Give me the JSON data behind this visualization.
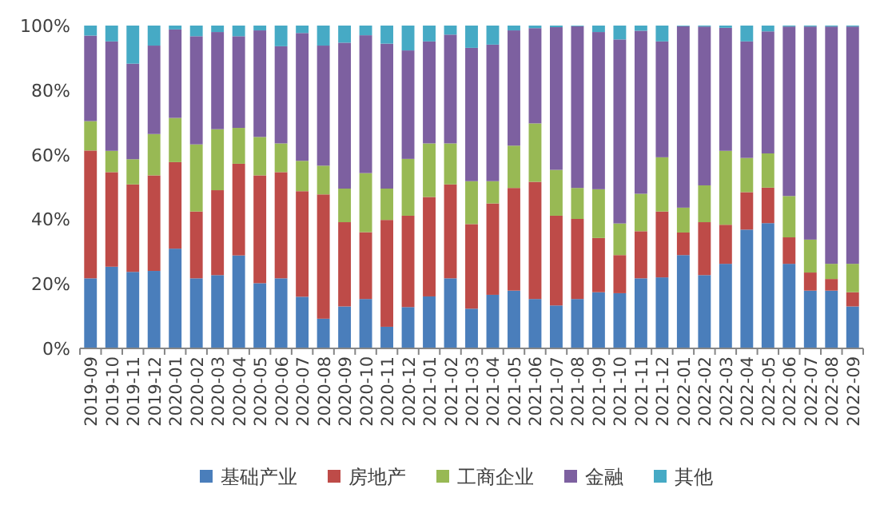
{
  "chart_data": {
    "type": "bar",
    "stacked": true,
    "categories": [
      "2019-09",
      "2019-10",
      "2019-11",
      "2019-12",
      "2020-01",
      "2020-02",
      "2020-03",
      "2020-04",
      "2020-05",
      "2020-06",
      "2020-07",
      "2020-08",
      "2020-09",
      "2020-10",
      "2020-11",
      "2020-12",
      "2021-01",
      "2021-02",
      "2021-03",
      "2021-04",
      "2021-05",
      "2021-06",
      "2021-07",
      "2021-08",
      "2021-09",
      "2021-10",
      "2021-11",
      "2021-12",
      "2022-01",
      "2022-02",
      "2022-03",
      "2022-04",
      "2022-05",
      "2022-06",
      "2022-07",
      "2022-08",
      "2022-09"
    ],
    "series": [
      {
        "name": "基础产业",
        "color": "#4a7ebb",
        "values": [
          21.7,
          25.3,
          23.7,
          24.0,
          30.9,
          21.7,
          22.7,
          28.8,
          20.2,
          21.7,
          16.0,
          9.2,
          13.0,
          15.3,
          6.7,
          12.8,
          16.1,
          21.7,
          12.3,
          16.6,
          17.9,
          15.3,
          13.3,
          15.3,
          17.4,
          17.1,
          21.7,
          22.0,
          28.9,
          22.7,
          26.2,
          36.8,
          38.8,
          26.2,
          17.9,
          17.9,
          13.0
        ]
      },
      {
        "name": "房地产",
        "color": "#be4b48",
        "values": [
          39.6,
          29.3,
          27.1,
          29.6,
          26.8,
          20.7,
          26.3,
          28.4,
          33.4,
          32.9,
          32.7,
          38.5,
          26.1,
          20.7,
          33.1,
          28.3,
          30.8,
          29.1,
          26.2,
          28.3,
          31.8,
          36.3,
          27.8,
          24.8,
          16.8,
          11.8,
          14.6,
          20.4,
          7.0,
          16.4,
          12.1,
          11.6,
          11.0,
          8.2,
          5.6,
          3.6,
          4.4
        ]
      },
      {
        "name": "工商企业",
        "color": "#98b954",
        "values": [
          9.1,
          6.6,
          7.8,
          12.8,
          13.7,
          20.8,
          18.9,
          11.1,
          11.9,
          8.9,
          9.4,
          8.9,
          10.4,
          18.3,
          9.7,
          17.6,
          16.6,
          12.7,
          13.3,
          6.9,
          13.1,
          18.1,
          14.2,
          9.6,
          15.1,
          9.8,
          11.6,
          16.8,
          7.7,
          11.4,
          22.9,
          10.6,
          10.6,
          12.8,
          10.2,
          4.7,
          8.8
        ]
      },
      {
        "name": "金融",
        "color": "#7d60a0",
        "values": [
          26.5,
          33.9,
          29.6,
          27.4,
          27.4,
          33.5,
          30.1,
          28.4,
          33.0,
          30.1,
          39.6,
          37.2,
          45.2,
          42.7,
          44.9,
          33.6,
          31.6,
          33.7,
          41.3,
          42.3,
          35.7,
          29.5,
          44.2,
          50.1,
          48.7,
          57.0,
          50.5,
          35.9,
          56.2,
          49.2,
          38.1,
          36.1,
          37.8,
          52.5,
          66.0,
          73.5,
          73.5
        ]
      },
      {
        "name": "其他",
        "color": "#46aac5",
        "values": [
          3.1,
          4.9,
          11.8,
          6.2,
          1.2,
          3.3,
          2.0,
          3.3,
          1.5,
          6.4,
          2.3,
          6.2,
          5.3,
          3.0,
          5.6,
          7.7,
          4.9,
          2.8,
          6.9,
          5.9,
          1.5,
          0.8,
          0.5,
          0.2,
          2.0,
          4.3,
          1.6,
          4.9,
          0.2,
          0.3,
          0.7,
          4.9,
          1.8,
          0.3,
          0.3,
          0.3,
          0.3
        ]
      }
    ],
    "ylim": [
      0,
      100
    ],
    "yticks": [
      {
        "value": 0,
        "label": "0%"
      },
      {
        "value": 20,
        "label": "20%"
      },
      {
        "value": 40,
        "label": "40%"
      },
      {
        "value": 60,
        "label": "60%"
      },
      {
        "value": 80,
        "label": "80%"
      },
      {
        "value": 100,
        "label": "100%"
      }
    ],
    "grid": false,
    "legend": "bottom"
  }
}
